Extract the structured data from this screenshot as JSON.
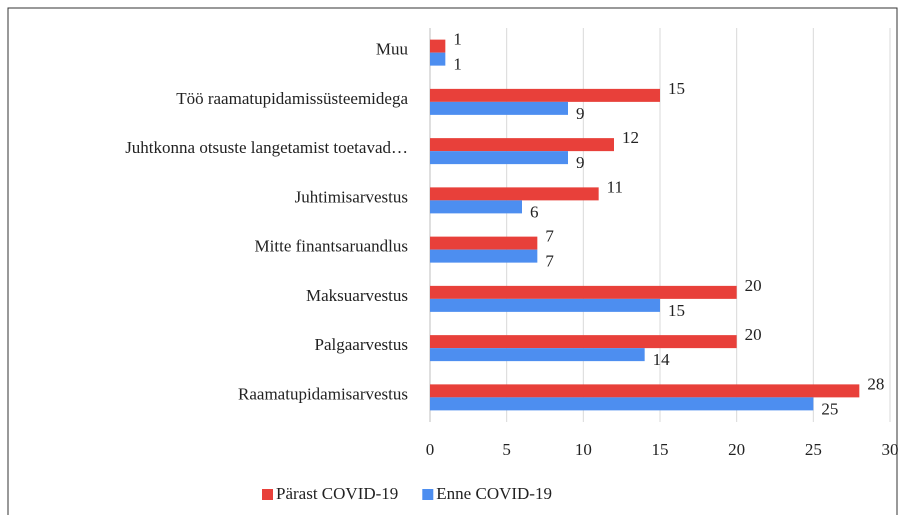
{
  "chart_data": {
    "type": "hbar",
    "categories": [
      "Muu",
      "Töö raamatupidamissüsteemidega",
      "Juhtkonna otsuste langetamist toetavad…",
      "Juhtimisarvestus",
      "Mitte finantsaruandlus",
      "Maksuarvestus",
      "Palgaarvestus",
      "Raamatupidamisarvestus"
    ],
    "series": [
      {
        "name": "Pärast COVID-19",
        "color": "#e8403a",
        "values": [
          1,
          15,
          12,
          11,
          7,
          20,
          20,
          28
        ]
      },
      {
        "name": "Enne COVID-19",
        "color": "#4d8ef0",
        "values": [
          1,
          9,
          9,
          6,
          7,
          15,
          14,
          25
        ]
      }
    ],
    "xlim": [
      0,
      30
    ],
    "xticks": [
      0,
      5,
      10,
      15,
      20,
      25,
      30
    ],
    "grid": true,
    "legend": "bottom"
  }
}
